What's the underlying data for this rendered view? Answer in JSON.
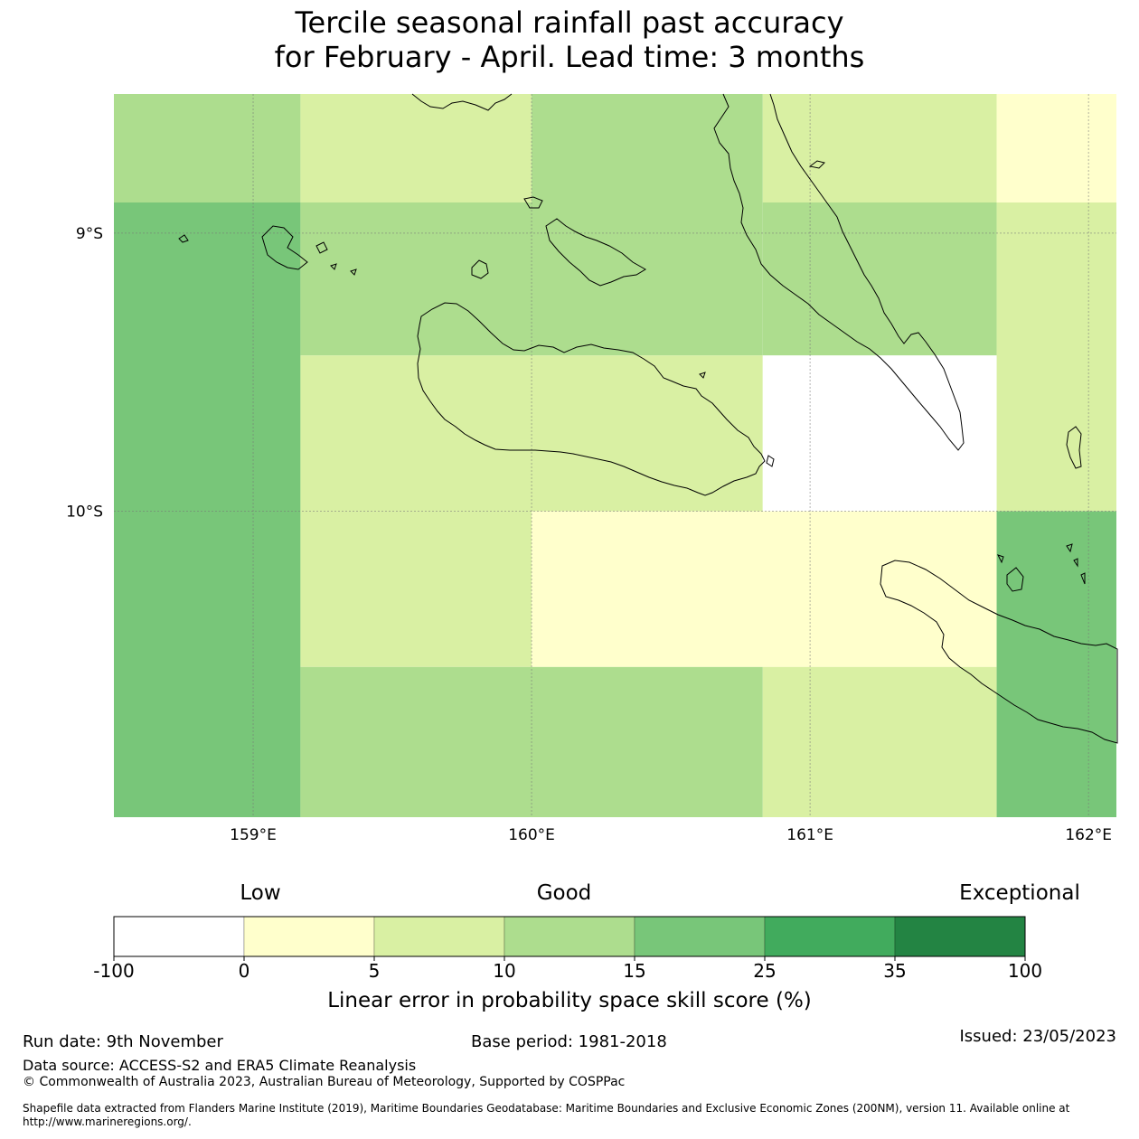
{
  "title": {
    "line1": "Tercile seasonal rainfall past accuracy",
    "line2": "for February - April. Lead time: 3 months"
  },
  "map": {
    "lat_labels": [
      "9°S",
      "10°S"
    ],
    "lon_labels": [
      "159°E",
      "160°E",
      "161°E",
      "162°E"
    ],
    "extent": {
      "lon_min": 158.5,
      "lon_max": 162.1,
      "lat_min": -11.1,
      "lat_max": -8.5
    }
  },
  "chart_data": {
    "type": "heatmap",
    "cells": [
      {
        "lon0": 158.5,
        "lon1": 159.17,
        "lat0": -8.5,
        "lat1": -8.89,
        "bin": 3
      },
      {
        "lon0": 159.17,
        "lon1": 160.0,
        "lat0": -8.5,
        "lat1": -8.89,
        "bin": 2
      },
      {
        "lon0": 160.0,
        "lon1": 160.83,
        "lat0": -8.5,
        "lat1": -8.89,
        "bin": 3
      },
      {
        "lon0": 160.83,
        "lon1": 161.67,
        "lat0": -8.5,
        "lat1": -8.89,
        "bin": 2
      },
      {
        "lon0": 161.67,
        "lon1": 162.1,
        "lat0": -8.5,
        "lat1": -8.89,
        "bin": 1
      },
      {
        "lon0": 158.5,
        "lon1": 159.17,
        "lat0": -8.89,
        "lat1": -11.1,
        "bin": 4
      },
      {
        "lon0": 159.17,
        "lon1": 160.83,
        "lat0": -8.89,
        "lat1": -9.44,
        "bin": 3
      },
      {
        "lon0": 160.83,
        "lon1": 161.67,
        "lat0": -8.89,
        "lat1": -9.44,
        "bin": 3
      },
      {
        "lon0": 161.67,
        "lon1": 162.1,
        "lat0": -8.89,
        "lat1": -10.0,
        "bin": 2
      },
      {
        "lon0": 159.17,
        "lon1": 160.83,
        "lat0": -9.44,
        "lat1": -10.0,
        "bin": 2
      },
      {
        "lon0": 160.83,
        "lon1": 161.67,
        "lat0": -9.44,
        "lat1": -10.0,
        "bin": 0
      },
      {
        "lon0": 159.17,
        "lon1": 160.0,
        "lat0": -10.0,
        "lat1": -10.56,
        "bin": 2
      },
      {
        "lon0": 160.0,
        "lon1": 161.67,
        "lat0": -10.0,
        "lat1": -10.56,
        "bin": 1
      },
      {
        "lon0": 161.67,
        "lon1": 162.1,
        "lat0": -10.0,
        "lat1": -11.1,
        "bin": 4
      },
      {
        "lon0": 159.17,
        "lon1": 160.83,
        "lat0": -10.56,
        "lat1": -11.1,
        "bin": 3
      },
      {
        "lon0": 160.83,
        "lon1": 161.67,
        "lat0": -10.56,
        "lat1": -11.1,
        "bin": 2
      }
    ],
    "colorbar": {
      "bounds": [
        "-100",
        "0",
        "5",
        "10",
        "15",
        "25",
        "35",
        "100"
      ],
      "colors": [
        "#ffffff",
        "#ffffcc",
        "#d9f0a3",
        "#addd8e",
        "#78c679",
        "#41ab5d",
        "#238443"
      ],
      "categories": [
        "Low",
        "Good",
        "Exceptional"
      ],
      "label": "Linear error in probability space skill score (%)"
    }
  },
  "footer": {
    "run_date": "Run date: 9th November",
    "base_period": "Base period: 1981-2018",
    "issued": "Issued: 23/05/2023",
    "data_source": "Data source: ACCESS-S2 and ERA5 Climate Reanalysis",
    "copyright": "© Commonwealth of Australia 2023, Australian Bureau of Meteorology, Supported by COSPPac",
    "shapefile": "Shapefile data extracted from Flanders Marine Institute (2019), Maritime Boundaries Geodatabase: Maritime Boundaries and Exclusive Economic Zones (200NM), version 11. Available online at http://www.marineregions.org/."
  }
}
